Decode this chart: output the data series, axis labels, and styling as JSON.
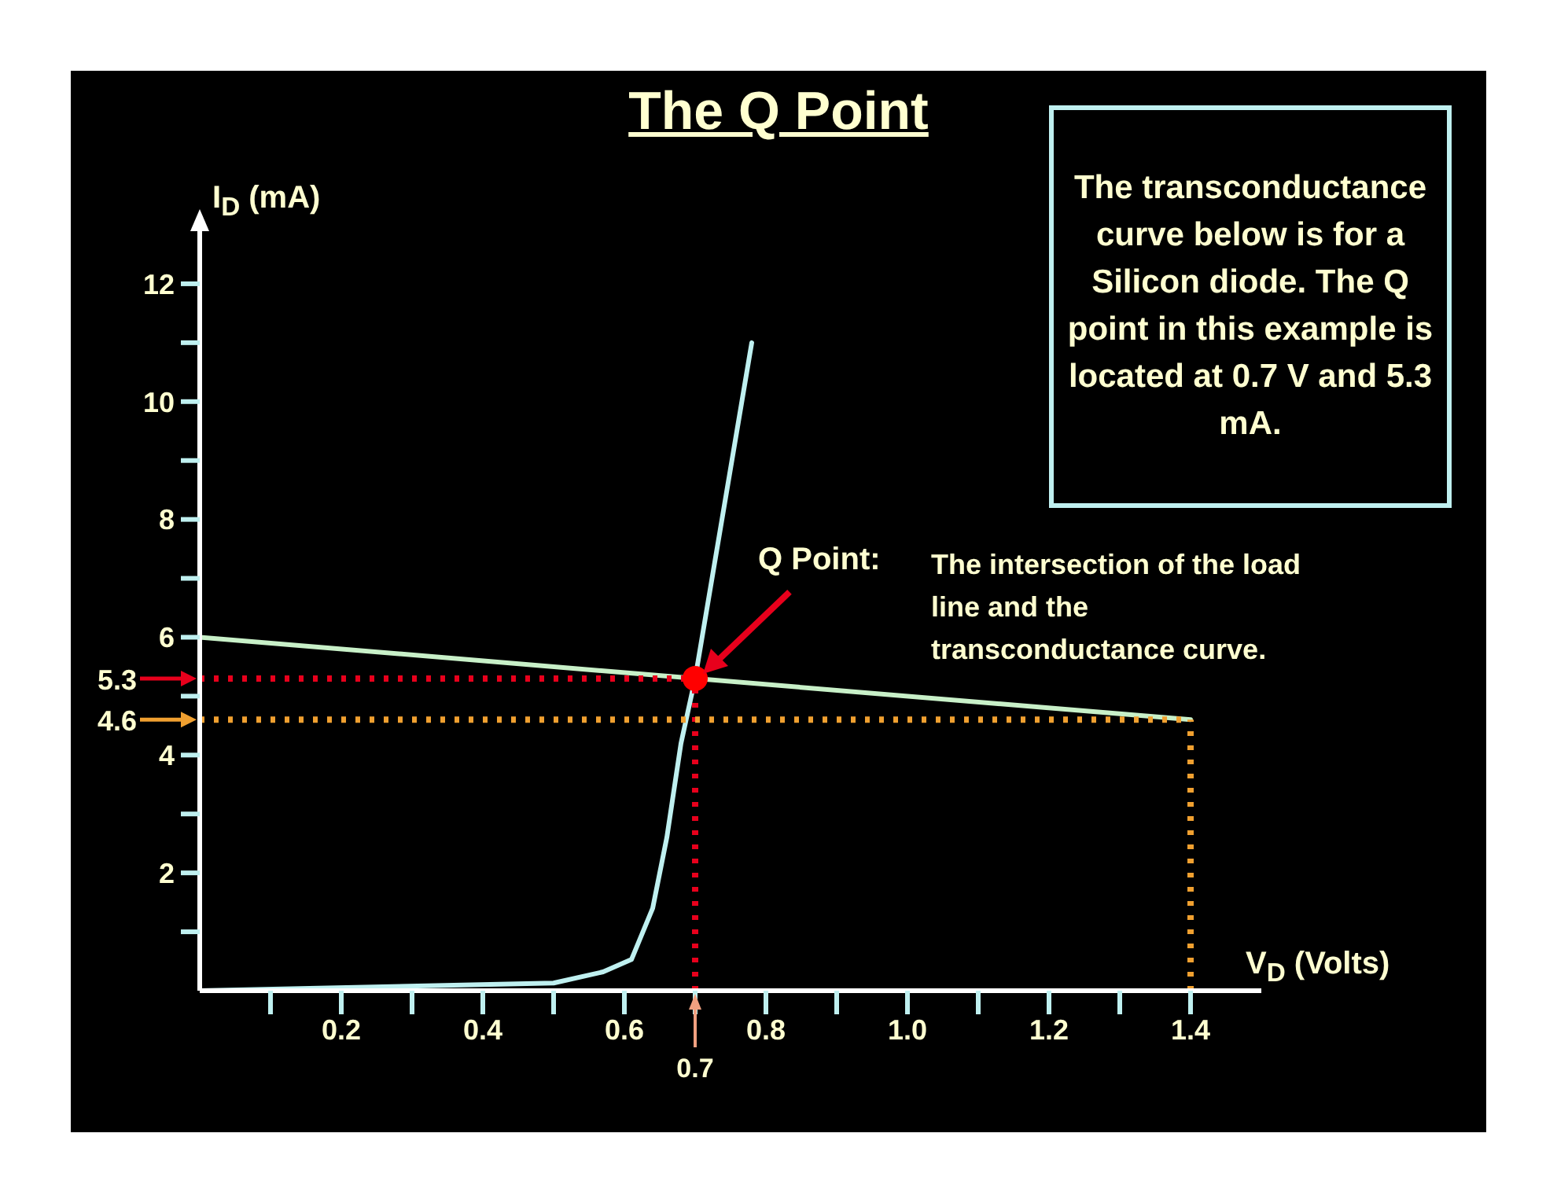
{
  "chart_data": {
    "type": "line",
    "title": "The Q Point",
    "xlabel": "V$_{D}$ (Volts)",
    "ylabel": "I$_{D}$ (mA)",
    "xlim": [
      0,
      1.5
    ],
    "ylim": [
      0,
      13
    ],
    "xticks": [
      {
        "value": 0.1,
        "label": null
      },
      0.2,
      {
        "value": 0.3,
        "label": null
      },
      0.4,
      {
        "value": 0.5,
        "label": null
      },
      0.6,
      {
        "value": 0.7,
        "label": null
      },
      0.8,
      {
        "value": 0.9,
        "label": null
      },
      {
        "value": 1,
        "label": "1.0"
      },
      {
        "value": 1.1,
        "label": null
      },
      1.2,
      {
        "value": 1.3,
        "label": null
      },
      1.4
    ],
    "yticks": [
      {
        "value": 1,
        "label": null
      },
      2,
      {
        "value": 3,
        "label": null
      },
      4,
      {
        "value": 5,
        "label": null
      },
      6,
      {
        "value": 7,
        "label": null
      },
      8,
      {
        "value": 9,
        "label": null
      },
      10,
      {
        "value": 11,
        "label": null
      },
      12
    ],
    "grid": false,
    "legend": false,
    "series": [
      {
        "color": "#bff0f0",
        "x": [
          0,
          0.5,
          0.57,
          0.61,
          0.64,
          0.66,
          0.68,
          0.7,
          0.78
        ],
        "values": [
          0,
          0.13,
          0.32,
          0.53,
          1.4,
          2.6,
          4.2,
          5.3,
          11
        ]
      },
      {
        "color": "#c8f0c8",
        "x": [
          0,
          1.4
        ],
        "values": [
          6,
          4.6
        ]
      },
      {
        "color": "#e8001c",
        "line_style": "dotted",
        "x": [
          0,
          0.7
        ],
        "values": [
          5.3,
          5.3
        ]
      },
      {
        "color": "#e8001c",
        "line_style": "dotted",
        "x": [
          0.7,
          0.7
        ],
        "values": [
          0,
          5.3
        ]
      },
      {
        "color": "#f0a030",
        "line_style": "dotted",
        "x": [
          0,
          1.4
        ],
        "values": [
          4.6,
          4.6
        ]
      },
      {
        "color": "#f0a030",
        "line_style": "dotted",
        "x": [
          1.4,
          1.4
        ],
        "values": [
          0,
          4.6
        ]
      },
      {
        "type": "scatter",
        "color": "#ff0000",
        "marker": "circle",
        "x": [
          0.7
        ],
        "values": [
          5.3
        ]
      }
    ],
    "annotations": [
      "5.3",
      "4.6",
      "0.7",
      "Q Point:",
      "The intersection of the load line and the transconductance curve.",
      "The transconductance curve below is for a Silicon diode.  The Q point in this example is located at 0.7 V and 5.3 mA."
    ]
  }
}
